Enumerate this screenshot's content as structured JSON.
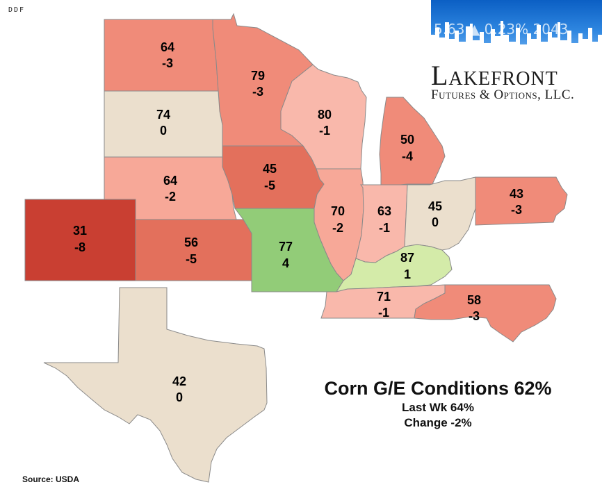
{
  "corner_mark": "DDF",
  "logo": {
    "ticker_text": "5.63 ▲ 0.23% 2043",
    "name": "Lakefront",
    "subtitle": "Futures & Options, LLC."
  },
  "summary": {
    "title": "Corn G/E Conditions 62%",
    "last_week": "Last Wk 64%",
    "change": "Change -2%"
  },
  "source": "Source: USDA",
  "colors": {
    "deep_red": "#c93f32",
    "red_mid": "#e3705c",
    "salmon": "#f08b79",
    "light_salmon": "#f7a898",
    "pale_salmon": "#f9b8ab",
    "beige": "#ebdfcd",
    "green": "#92cc78",
    "light_green": "#d4eba9"
  },
  "states": [
    {
      "id": "north-dakota",
      "value": "64",
      "change": "-3"
    },
    {
      "id": "minnesota",
      "value": "79",
      "change": "-3"
    },
    {
      "id": "south-dakota",
      "value": "74",
      "change": "0"
    },
    {
      "id": "wisconsin",
      "value": "80",
      "change": "-1"
    },
    {
      "id": "michigan",
      "value": "50",
      "change": "-4"
    },
    {
      "id": "nebraska",
      "value": "64",
      "change": "-2"
    },
    {
      "id": "iowa",
      "value": "45",
      "change": "-5"
    },
    {
      "id": "illinois",
      "value": "70",
      "change": "-2"
    },
    {
      "id": "indiana",
      "value": "63",
      "change": "-1"
    },
    {
      "id": "ohio",
      "value": "45",
      "change": "0"
    },
    {
      "id": "pennsylvania",
      "value": "43",
      "change": "-3"
    },
    {
      "id": "colorado",
      "value": "31",
      "change": "-8"
    },
    {
      "id": "kansas",
      "value": "56",
      "change": "-5"
    },
    {
      "id": "missouri",
      "value": "77",
      "change": "4"
    },
    {
      "id": "kentucky",
      "value": "87",
      "change": "1"
    },
    {
      "id": "tennessee",
      "value": "71",
      "change": "-1"
    },
    {
      "id": "north-carolina",
      "value": "58",
      "change": "-3"
    },
    {
      "id": "texas",
      "value": "42",
      "change": "0"
    }
  ]
}
